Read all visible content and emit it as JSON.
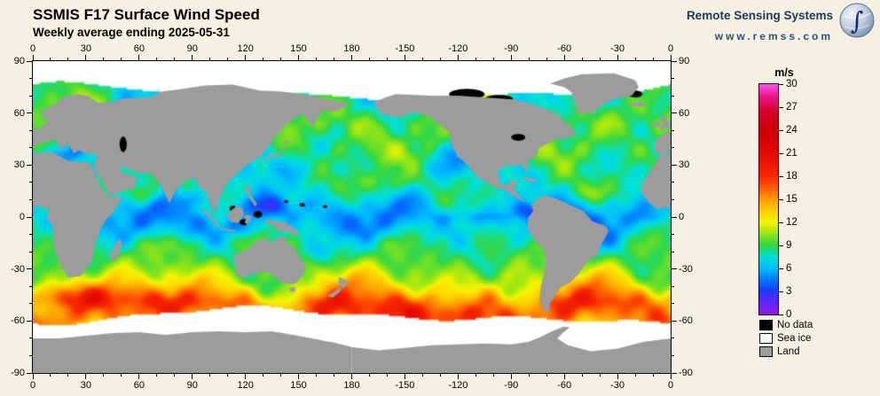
{
  "header": {
    "title": "SSMIS F17 Surface Wind Speed",
    "subtitle": "Weekly average ending 2025-05-31"
  },
  "branding": {
    "name": "Remote Sensing Systems",
    "url": "www.remss.com",
    "text_color": "#1d3a63"
  },
  "map": {
    "projection": "equirectangular",
    "lon_range": [
      0,
      360
    ],
    "lat_range": [
      -90,
      90
    ],
    "grid_step_deg": 30,
    "background_color": "#F5F0E1",
    "frame_color": "#000000"
  },
  "axes": {
    "lon_tick_labels": [
      "0",
      "30",
      "60",
      "90",
      "120",
      "150",
      "180",
      "-150",
      "-120",
      "-90",
      "-60",
      "-30",
      "0"
    ],
    "lat_tick_labels": [
      "90",
      "60",
      "30",
      "0",
      "-30",
      "-60",
      "-90"
    ]
  },
  "colorbar": {
    "unit": "m/s",
    "min": 0,
    "max": 30,
    "tick_labels": [
      "30",
      "27",
      "24",
      "21",
      "18",
      "15",
      "12",
      "9",
      "6",
      "3",
      "0"
    ],
    "gradient_stops": [
      {
        "value": 0,
        "color": "#8C1EEB"
      },
      {
        "value": 2,
        "color": "#5028FF"
      },
      {
        "value": 3,
        "color": "#1E3CFF"
      },
      {
        "value": 4.5,
        "color": "#0078FF"
      },
      {
        "value": 6,
        "color": "#00BEFF"
      },
      {
        "value": 7.5,
        "color": "#00E1D7"
      },
      {
        "value": 9,
        "color": "#32D746"
      },
      {
        "value": 10.5,
        "color": "#96E614"
      },
      {
        "value": 12,
        "color": "#F5F500"
      },
      {
        "value": 13.5,
        "color": "#FFCD00"
      },
      {
        "value": 15,
        "color": "#FF9B00"
      },
      {
        "value": 16.5,
        "color": "#FF5F00"
      },
      {
        "value": 18,
        "color": "#F82800"
      },
      {
        "value": 21,
        "color": "#E40A00"
      },
      {
        "value": 24,
        "color": "#CD0000"
      },
      {
        "value": 26.5,
        "color": "#D70028"
      },
      {
        "value": 28.5,
        "color": "#F0148C"
      },
      {
        "value": 30,
        "color": "#FF50EB"
      }
    ]
  },
  "legend": {
    "items": [
      {
        "label": "No data",
        "color": "#000000"
      },
      {
        "label": "Sea ice",
        "color": "#FFFFFF"
      },
      {
        "label": "Land",
        "color": "#9C9C9C"
      }
    ]
  },
  "chart_data": {
    "type": "heatmap",
    "title": "SSMIS F17 Surface Wind Speed",
    "subtitle": "Weekly average ending 2025-05-31",
    "variable": "surface wind speed",
    "units": "m/s",
    "x_axis": {
      "range": [
        0,
        360
      ],
      "tick_values": [
        0,
        30,
        60,
        90,
        120,
        150,
        180,
        -150,
        -120,
        -90,
        -60,
        -30,
        0
      ]
    },
    "y_axis": {
      "range": [
        -90,
        90
      ],
      "tick_values": [
        90,
        60,
        30,
        0,
        -30,
        -60,
        -90
      ]
    },
    "color_scale": {
      "range": [
        0,
        30
      ],
      "tick_values": [
        0,
        3,
        6,
        9,
        12,
        15,
        18,
        21,
        24,
        27,
        30
      ]
    },
    "mask_categories": [
      "No data",
      "Sea ice",
      "Land"
    ]
  }
}
